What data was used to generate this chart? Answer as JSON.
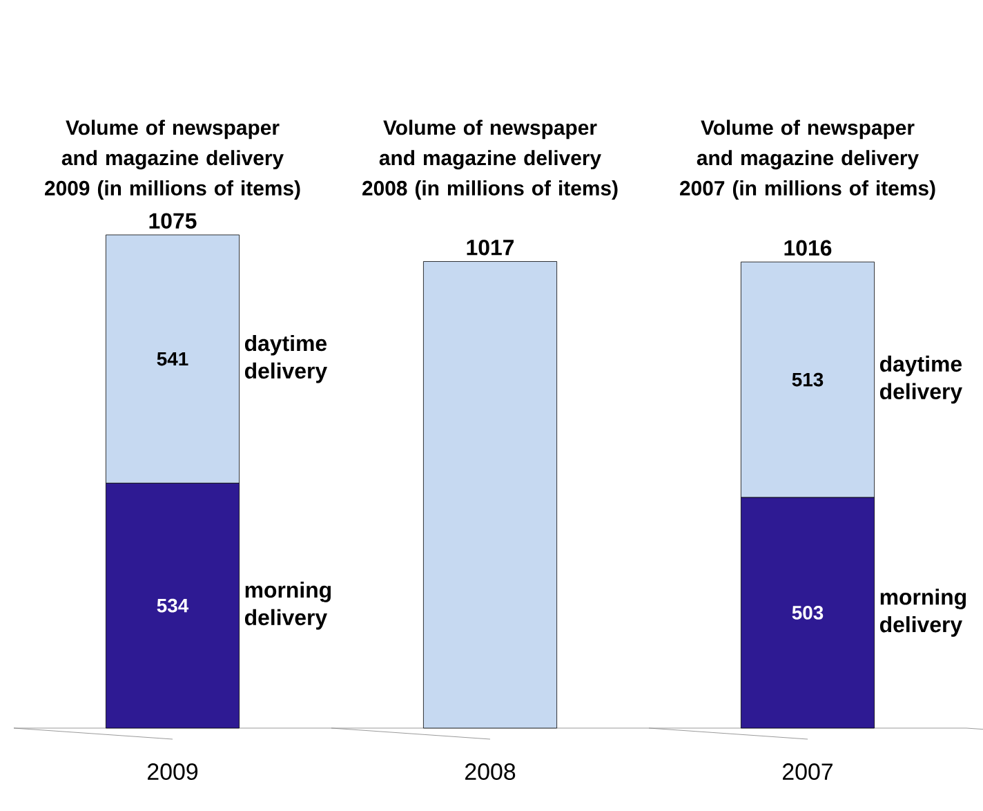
{
  "chart_data": {
    "type": "bar",
    "stacked": true,
    "categories": [
      "2009",
      "2008",
      "2007"
    ],
    "series": [
      {
        "name": "morning delivery",
        "color": "#2e1a93",
        "values": [
          534,
          null,
          503
        ],
        "value_labels": [
          "534",
          null,
          "503"
        ]
      },
      {
        "name": "daytime delivery",
        "color": "#c6d9f1",
        "values": [
          541,
          1017,
          513
        ],
        "value_labels": [
          "541",
          null,
          "513"
        ]
      }
    ],
    "totals": [
      "1075",
      "1017",
      "1016"
    ],
    "annotations": [
      "Volume of newspaper and magazine delivery 2009 (in millions of items)",
      "Volume of newspaper and magazine delivery 2008 (in millions of items)",
      "Volume of newspaper and magazine delivery 2007 (in millions of items)"
    ]
  }
}
